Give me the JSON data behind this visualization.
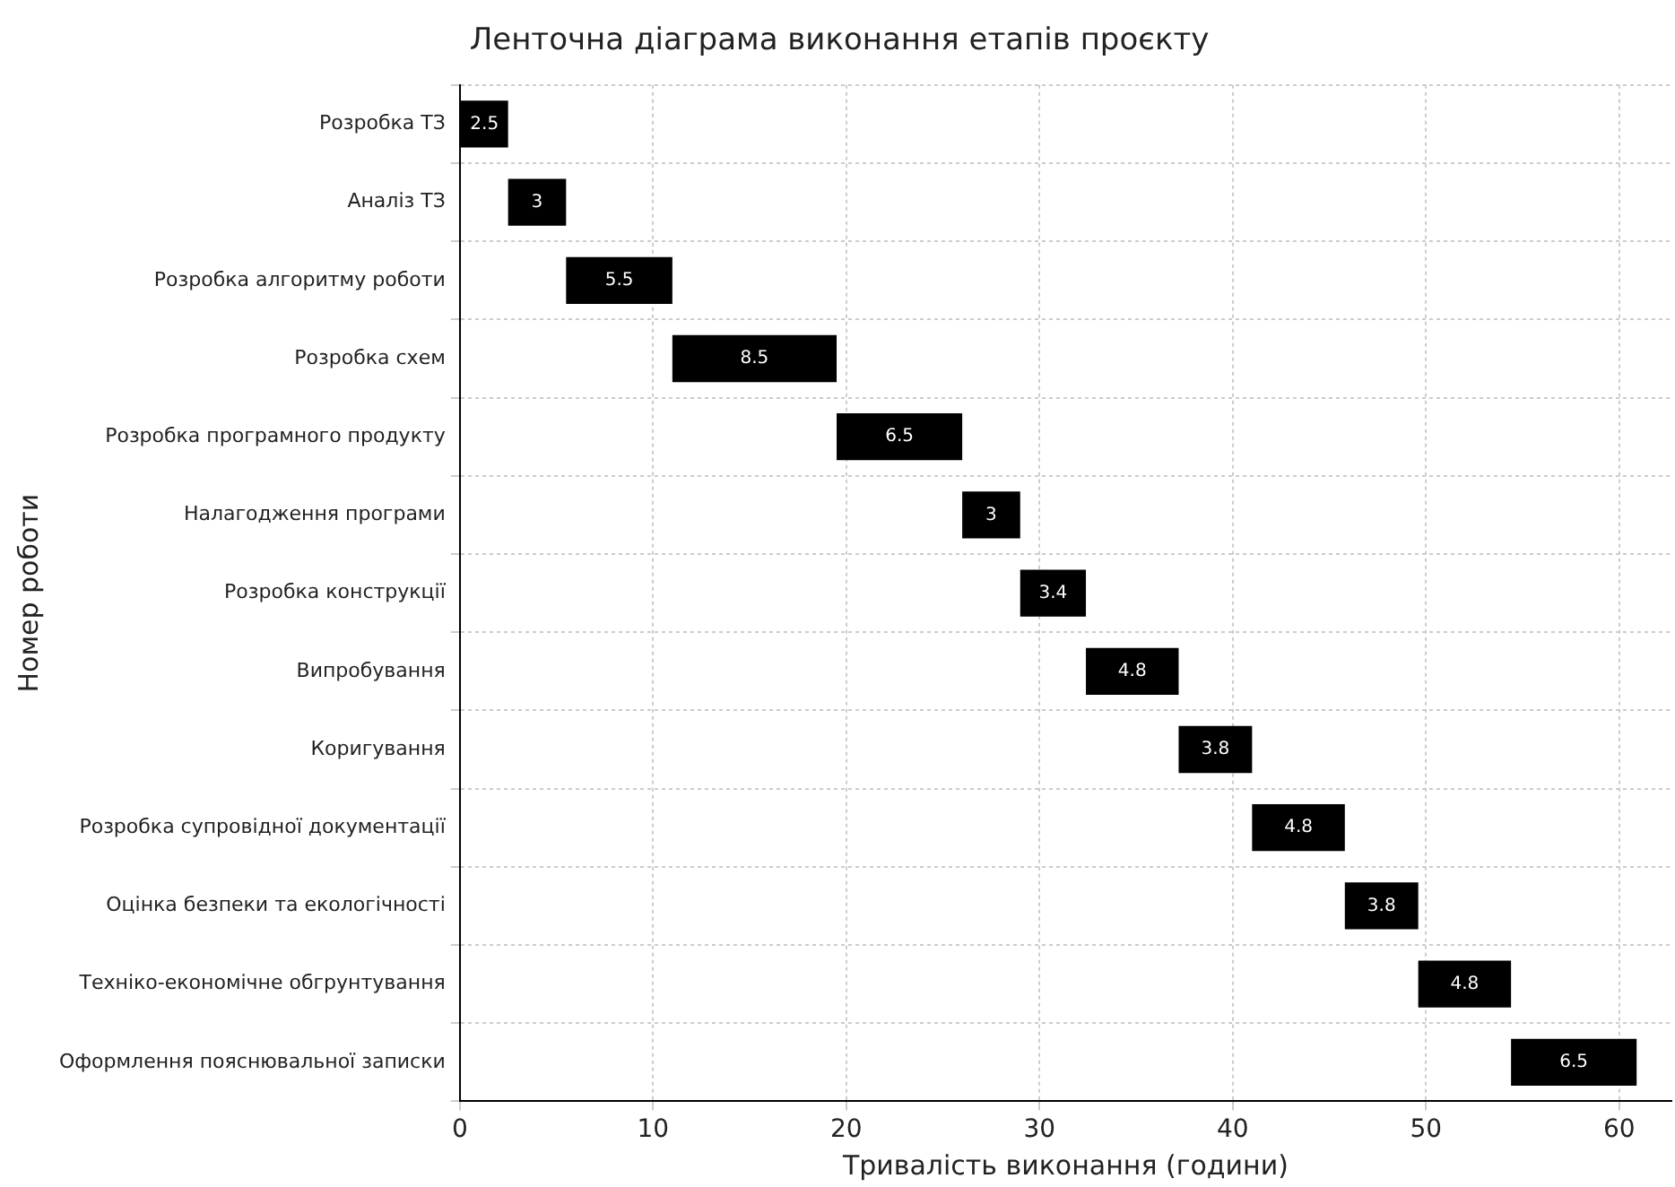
{
  "chart_data": {
    "type": "bar",
    "orientation": "horizontal",
    "title": "Ленточна діаграма виконання етапів проєкту",
    "xlabel": "Тривалість виконання (години)",
    "ylabel": "Номер роботи",
    "categories": [
      "Розробка ТЗ",
      "Аналіз ТЗ",
      "Розробка алгоритму роботи",
      "Розробка схем",
      "Розробка програмного продукту",
      "Налагодження програми",
      "Розробка конструкції",
      "Випробування",
      "Коригування",
      "Розробка супровідної документації",
      "Оцінка безпеки та екологічності",
      "Техніко-економічне обгрунтування",
      "Оформлення пояснювальної записки"
    ],
    "values": [
      2.5,
      3,
      5.5,
      8.5,
      6.5,
      3,
      3.4,
      4.8,
      3.8,
      4.8,
      3.8,
      4.8,
      6.5
    ],
    "base": [
      0,
      2.5,
      5.5,
      11,
      19.5,
      26,
      29,
      32.4,
      37.2,
      41,
      45.8,
      49.6,
      54.4
    ],
    "color": "#000000",
    "xlim": [
      0,
      62.7
    ],
    "xticks": [
      0,
      10,
      20,
      30,
      40,
      50,
      60
    ],
    "grid": true,
    "data_labels": true
  }
}
